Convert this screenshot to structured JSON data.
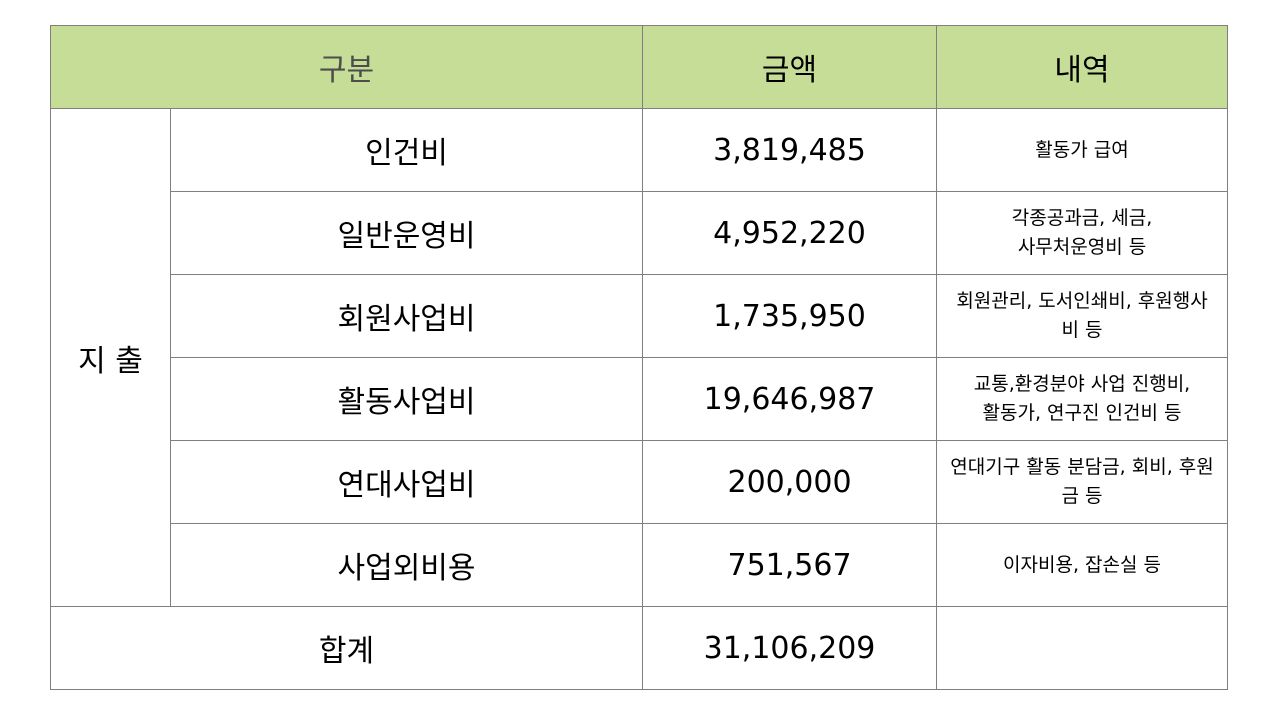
{
  "header": {
    "category": "구분",
    "amount": "금액",
    "details": "내역"
  },
  "group_label": "지 출",
  "rows": [
    {
      "item": "인건비",
      "amount": "3,819,485",
      "detail_lines": [
        "활동가 급여"
      ]
    },
    {
      "item": "일반운영비",
      "amount": "4,952,220",
      "detail_lines": [
        "각종공과금, 세금,",
        "사무처운영비 등"
      ]
    },
    {
      "item": "회원사업비",
      "amount": "1,735,950",
      "detail_lines": [
        "회원관리, 도서인쇄비, 후원행사",
        "비 등"
      ]
    },
    {
      "item": "활동사업비",
      "amount": "19,646,987",
      "detail_lines": [
        "교통,환경분야 사업 진행비,",
        "활동가, 연구진 인건비 등"
      ]
    },
    {
      "item": "연대사업비",
      "amount": "200,000",
      "detail_lines": [
        "연대기구 활동 분담금, 회비, 후원",
        "금 등"
      ]
    },
    {
      "item": "사업외비용",
      "amount": "751,567",
      "detail_lines": [
        "이자비용, 잡손실 등"
      ]
    }
  ],
  "total": {
    "label": "합계",
    "amount": "31,106,209",
    "detail": ""
  },
  "colors": {
    "header_background": "#c5dd96",
    "border": "#7f7f7f"
  }
}
